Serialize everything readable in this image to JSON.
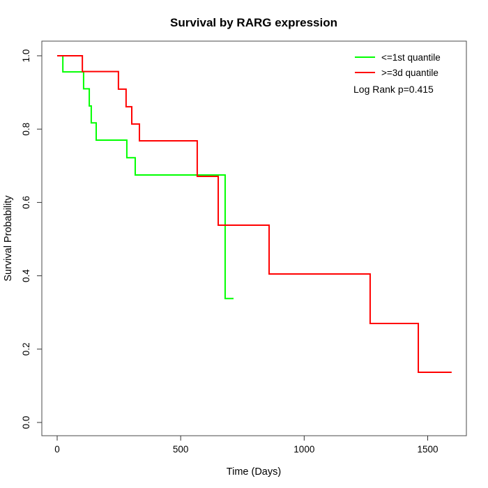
{
  "chart_data": {
    "type": "line",
    "variant": "kaplan-meier-step",
    "title": "Survival by RARG expression",
    "xlabel": "Time (Days)",
    "ylabel": "Survival Probability",
    "xlim": [
      0,
      1600
    ],
    "ylim": [
      0.0,
      1.0
    ],
    "grid": false,
    "legend_position": "top-right",
    "x_ticks": [
      {
        "label": "0",
        "value": 0
      },
      {
        "label": "500",
        "value": 500
      },
      {
        "label": "1000",
        "value": 1000
      },
      {
        "label": "1500",
        "value": 1500
      }
    ],
    "y_ticks": [
      {
        "label": "0.0",
        "value": 0.0
      },
      {
        "label": "0.2",
        "value": 0.2
      },
      {
        "label": "0.4",
        "value": 0.4
      },
      {
        "label": "0.6",
        "value": 0.6
      },
      {
        "label": "0.8",
        "value": 0.8
      },
      {
        "label": "1.0",
        "value": 1.0
      }
    ],
    "series": [
      {
        "name": "<=1st quantile",
        "color": "#00ff00",
        "steps": [
          [
            0,
            1.0
          ],
          [
            23,
            0.956
          ],
          [
            107,
            0.91
          ],
          [
            130,
            0.863
          ],
          [
            138,
            0.817
          ],
          [
            158,
            0.77
          ],
          [
            282,
            0.722
          ],
          [
            316,
            0.675
          ],
          [
            680,
            0.338
          ]
        ],
        "end_day": 714
      },
      {
        "name": ">=3d quantile",
        "color": "#ff0000",
        "steps": [
          [
            0,
            1.0
          ],
          [
            102,
            0.957
          ],
          [
            248,
            0.909
          ],
          [
            279,
            0.861
          ],
          [
            302,
            0.814
          ],
          [
            333,
            0.768
          ],
          [
            567,
            0.671
          ],
          [
            652,
            0.538
          ],
          [
            858,
            0.405
          ],
          [
            1267,
            0.27
          ],
          [
            1462,
            0.137
          ]
        ],
        "end_day": 1597
      }
    ],
    "annotation": "Log Rank p=0.415",
    "axis_color": "#4a4a4a",
    "tick_color": "#333333"
  }
}
